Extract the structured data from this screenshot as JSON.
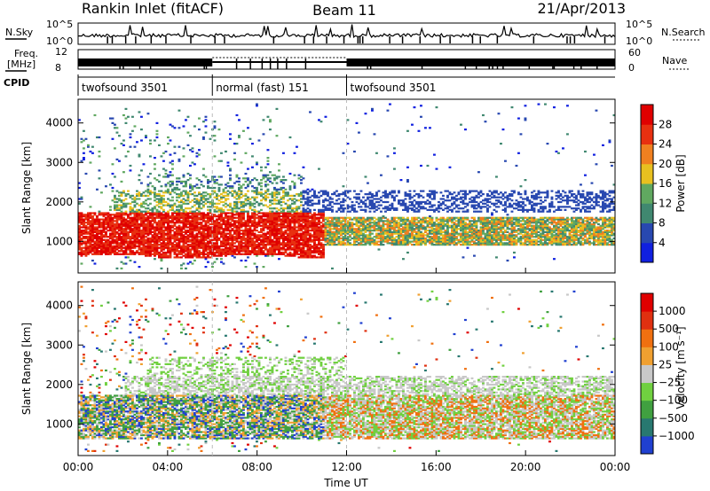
{
  "header": {
    "station": "Rankin Inlet (fitACF)",
    "beam": "Beam 11",
    "date": "21/Apr/2013"
  },
  "summary_panels": {
    "nsky_label": "N.Sky",
    "nsky_ticks": [
      "10^5",
      "10^0"
    ],
    "nsearch_label": "N.Search",
    "nsearch_ticks": [
      "10^5",
      "10^0"
    ],
    "freq_label": "Freq.",
    "freq_unit": "[MHz]",
    "freq_ticks": [
      "12",
      "8"
    ],
    "nave_label": "Nave",
    "nave_ticks": [
      "60",
      "0"
    ],
    "cpid_label": "CPID",
    "modes": [
      {
        "name": "twofsound 3501",
        "start_h": 0,
        "end_h": 6
      },
      {
        "name": "normal (fast) 151",
        "start_h": 6,
        "end_h": 12
      },
      {
        "name": "twofsound 3501",
        "start_h": 12,
        "end_h": 24
      }
    ]
  },
  "chart_data": [
    {
      "type": "heatmap",
      "name": "power",
      "ylabel": "Slant Range [km]",
      "yticks": [
        1000,
        2000,
        3000,
        4000
      ],
      "ylim": [
        200,
        4600
      ],
      "xlim": [
        0,
        24
      ],
      "colorbar": {
        "label": "Power [dB]",
        "ticks": [
          "4",
          "8",
          "12",
          "16",
          "20",
          "24",
          "28"
        ],
        "colors": [
          "#1020e0",
          "#2848b0",
          "#408870",
          "#60a860",
          "#e8c020",
          "#f08020",
          "#e83010",
          "#e00000"
        ]
      },
      "bands": [
        {
          "range_km": [
            600,
            1700
          ],
          "start_h": 0,
          "end_h": 11,
          "level": "high"
        },
        {
          "range_km": [
            900,
            1600
          ],
          "start_h": 11,
          "end_h": 24,
          "level": "mid"
        },
        {
          "range_km": [
            1700,
            2300
          ],
          "start_h": 2,
          "end_h": 24,
          "level": "low"
        }
      ]
    },
    {
      "type": "heatmap",
      "name": "velocity",
      "ylabel": "Slant Range [km]",
      "yticks": [
        1000,
        2000,
        3000,
        4000
      ],
      "ylim": [
        200,
        4600
      ],
      "xlim": [
        0,
        24
      ],
      "xticks": [
        "00:00",
        "04:00",
        "08:00",
        "12:00",
        "16:00",
        "20:00",
        "00:00"
      ],
      "xlabel": "Time UT",
      "colorbar": {
        "label": "Velocity [m s⁻¹]",
        "ticks": [
          "1000",
          "500",
          "100",
          "25",
          "−25",
          "−100",
          "−500",
          "−1000"
        ],
        "colors": [
          "#2040d0",
          "#287870",
          "#40a040",
          "#70d040",
          "#c8c8c8",
          "#f0a030",
          "#f07010",
          "#e03010",
          "#e00000"
        ]
      }
    }
  ]
}
